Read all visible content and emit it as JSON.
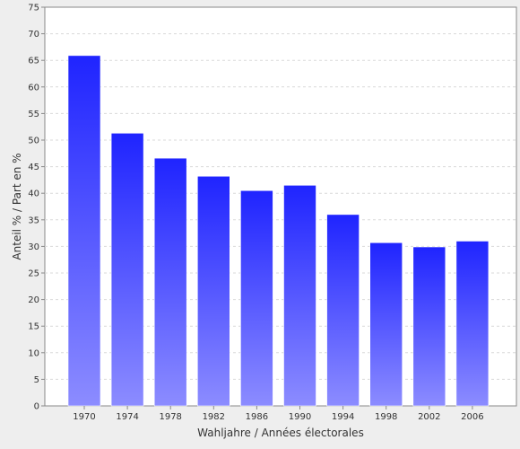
{
  "chart_data": {
    "type": "bar",
    "categories": [
      "1970",
      "1974",
      "1978",
      "1982",
      "1986",
      "1990",
      "1994",
      "1998",
      "2002",
      "2006"
    ],
    "values": [
      65.9,
      51.3,
      46.6,
      43.2,
      40.5,
      41.5,
      36.0,
      30.7,
      29.9,
      31.0
    ],
    "xlabel": "Wahljahre / Années électorales",
    "ylabel": "Anteil % / Part en %",
    "ylim": [
      0,
      75
    ],
    "yticks": [
      0,
      5,
      10,
      15,
      20,
      25,
      30,
      35,
      40,
      45,
      50,
      55,
      60,
      65,
      70,
      75
    ],
    "grid": true,
    "colors": {
      "bar_top": "#1f24ff",
      "bar_bottom": "#8c8cff",
      "plot_background": "#ffffff",
      "figure_background": "#eeeeee",
      "grid": "#d9d9d9"
    }
  }
}
